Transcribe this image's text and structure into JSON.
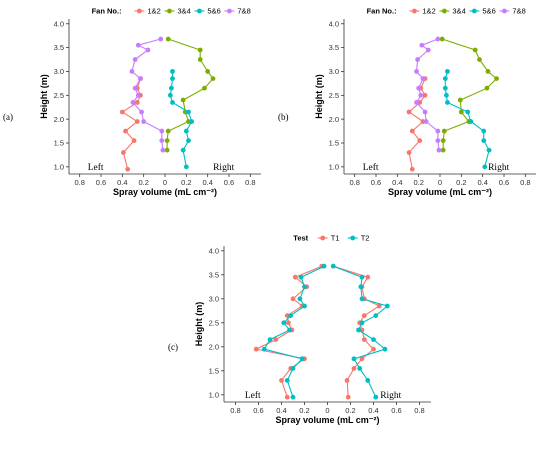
{
  "chart_data": [
    {
      "id": "a",
      "type": "line",
      "panel_tag": "(a)",
      "xlabel": "Spray volume (mL cm⁻²)",
      "ylabel": "Height (m)",
      "xlim": [
        -0.9,
        0.9
      ],
      "ylim": [
        0.85,
        4.1
      ],
      "x_ticks": [
        -0.8,
        -0.6,
        -0.4,
        -0.2,
        0,
        0.2,
        0.4,
        0.6,
        0.8
      ],
      "x_tick_labels": [
        "0.8",
        "0.6",
        "0.4",
        "0.2",
        "0",
        "0.2",
        "0.4",
        "0.6",
        "0.8"
      ],
      "y_ticks": [
        1.0,
        1.5,
        2.0,
        2.5,
        3.0,
        3.5,
        4.0
      ],
      "y_tick_labels": [
        "1.0",
        "1.5",
        "2.0",
        "2.5",
        "3.0",
        "3.5",
        "4.0"
      ],
      "legend_title": "Fan No.:",
      "legend_position": "top",
      "left_label": "Left",
      "right_label": "Right",
      "series": [
        {
          "name": "1&2",
          "color": "#F8766D",
          "x": [
            -0.35,
            -0.39,
            -0.29,
            -0.37,
            -0.26,
            -0.4,
            -0.26,
            -0.23,
            -0.26,
            -0.23
          ],
          "y": [
            0.95,
            1.3,
            1.55,
            1.75,
            1.95,
            2.15,
            2.35,
            2.5,
            2.65,
            2.85
          ]
        },
        {
          "name": "3&4",
          "color": "#7CAE00",
          "x": [
            0.02,
            0.02,
            0.03,
            0.22,
            0.19,
            0.17,
            0.37,
            0.45,
            0.4,
            0.33,
            0.33,
            0.03
          ],
          "y": [
            1.35,
            1.55,
            1.75,
            1.95,
            2.15,
            2.4,
            2.65,
            2.85,
            3.0,
            3.25,
            3.45,
            3.68
          ]
        },
        {
          "name": "5&6",
          "color": "#00BFC4",
          "x": [
            0.2,
            0.17,
            0.22,
            0.2,
            0.25,
            0.22,
            0.07,
            0.05,
            0.06,
            0.07,
            0.07
          ],
          "y": [
            1.0,
            1.35,
            1.55,
            1.75,
            1.95,
            2.15,
            2.35,
            2.5,
            2.65,
            2.85,
            3.0
          ]
        },
        {
          "name": "7&8",
          "color": "#C77CFF",
          "x": [
            -0.02,
            -0.03,
            -0.03,
            -0.2,
            -0.22,
            -0.3,
            -0.25,
            -0.28,
            -0.23,
            -0.31,
            -0.28,
            -0.16,
            -0.25,
            -0.04
          ],
          "y": [
            1.35,
            1.55,
            1.75,
            1.95,
            2.15,
            2.35,
            2.5,
            2.65,
            2.85,
            3.0,
            3.25,
            3.45,
            3.55,
            3.68
          ]
        }
      ]
    },
    {
      "id": "b",
      "type": "line",
      "panel_tag": "(b)",
      "xlabel": "Spray volume (mL cm⁻²)",
      "ylabel": "Height (m)",
      "xlim": [
        -0.9,
        0.9
      ],
      "ylim": [
        0.85,
        4.1
      ],
      "x_ticks": [
        -0.8,
        -0.6,
        -0.4,
        -0.2,
        0,
        0.2,
        0.4,
        0.6,
        0.8
      ],
      "x_tick_labels": [
        "0.8",
        "0.6",
        "0.4",
        "0.2",
        "0",
        "0.2",
        "0.4",
        "0.6",
        "0.8"
      ],
      "y_ticks": [
        1.0,
        1.5,
        2.0,
        2.5,
        3.0,
        3.5,
        4.0
      ],
      "y_tick_labels": [
        "1.0",
        "1.5",
        "2.0",
        "2.5",
        "3.0",
        "3.5",
        "4.0"
      ],
      "legend_title": "Fan No.:",
      "legend_position": "top",
      "left_label": "Left",
      "right_label": "Right",
      "series": [
        {
          "name": "1&2",
          "color": "#F8766D",
          "x": [
            -0.26,
            -0.29,
            -0.19,
            -0.26,
            -0.16,
            -0.29,
            -0.19,
            -0.14,
            -0.18,
            -0.14
          ],
          "y": [
            0.95,
            1.3,
            1.55,
            1.75,
            1.95,
            2.15,
            2.35,
            2.5,
            2.65,
            2.85
          ]
        },
        {
          "name": "3&4",
          "color": "#7CAE00",
          "x": [
            0.03,
            0.03,
            0.04,
            0.27,
            0.2,
            0.19,
            0.44,
            0.53,
            0.45,
            0.37,
            0.33,
            0.02
          ],
          "y": [
            1.35,
            1.55,
            1.75,
            1.95,
            2.15,
            2.4,
            2.65,
            2.85,
            3.0,
            3.25,
            3.45,
            3.68
          ]
        },
        {
          "name": "5&6",
          "color": "#00BFC4",
          "x": [
            0.42,
            0.46,
            0.41,
            0.41,
            0.29,
            0.26,
            0.07,
            0.06,
            0.05,
            0.05,
            0.07
          ],
          "y": [
            1.0,
            1.35,
            1.55,
            1.75,
            1.95,
            2.15,
            2.35,
            2.5,
            2.65,
            2.85,
            3.0
          ]
        },
        {
          "name": "7&8",
          "color": "#C77CFF",
          "x": [
            -0.01,
            -0.02,
            -0.02,
            -0.13,
            -0.14,
            -0.22,
            -0.18,
            -0.2,
            -0.16,
            -0.22,
            -0.21,
            -0.11,
            -0.17,
            -0.02
          ],
          "y": [
            1.35,
            1.55,
            1.75,
            1.95,
            2.15,
            2.35,
            2.5,
            2.65,
            2.85,
            3.0,
            3.25,
            3.45,
            3.55,
            3.68
          ]
        }
      ]
    },
    {
      "id": "c",
      "type": "line",
      "panel_tag": "(c)",
      "xlabel": "Spray volume (mL cm⁻²)",
      "ylabel": "Height (m)",
      "xlim": [
        -0.9,
        0.9
      ],
      "ylim": [
        0.85,
        4.1
      ],
      "x_ticks": [
        -0.8,
        -0.6,
        -0.4,
        -0.2,
        0,
        0.2,
        0.4,
        0.6,
        0.8
      ],
      "x_tick_labels": [
        "0.8",
        "0.6",
        "0.4",
        "0.2",
        "0",
        "0.2",
        "0.4",
        "0.6",
        "0.8"
      ],
      "y_ticks": [
        1.0,
        1.5,
        2.0,
        2.5,
        3.0,
        3.5,
        4.0
      ],
      "y_tick_labels": [
        "1.0",
        "1.5",
        "2.0",
        "2.5",
        "3.0",
        "3.5",
        "4.0"
      ],
      "legend_title": "Test",
      "legend_position": "top",
      "left_label": "Left",
      "right_label": "Right",
      "series": [
        {
          "name": "T1",
          "color": "#F8766D",
          "x": [
            -0.35,
            -0.4,
            -0.32,
            -0.2,
            -0.62,
            -0.45,
            -0.31,
            -0.34,
            -0.35,
            -0.22,
            -0.3,
            -0.18,
            -0.28,
            -0.05
          ],
          "y": [
            0.95,
            1.3,
            1.55,
            1.75,
            1.95,
            2.15,
            2.35,
            2.5,
            2.65,
            2.85,
            3.0,
            3.25,
            3.45,
            3.68
          ]
        },
        {
          "name": "T1",
          "color": "#F8766D",
          "x": [
            0.18,
            0.17,
            0.23,
            0.3,
            0.4,
            0.32,
            0.3,
            0.28,
            0.32,
            0.45,
            0.32,
            0.3,
            0.35,
            0.05
          ],
          "y": [
            0.95,
            1.3,
            1.55,
            1.75,
            1.95,
            2.15,
            2.35,
            2.5,
            2.65,
            2.85,
            3.0,
            3.25,
            3.45,
            3.68
          ]
        },
        {
          "name": "T2",
          "color": "#00BFC4",
          "x": [
            -0.3,
            -0.35,
            -0.3,
            -0.22,
            -0.55,
            -0.5,
            -0.33,
            -0.38,
            -0.32,
            -0.2,
            -0.24,
            -0.2,
            -0.23,
            -0.03
          ],
          "y": [
            0.95,
            1.3,
            1.55,
            1.75,
            1.95,
            2.15,
            2.35,
            2.5,
            2.65,
            2.85,
            3.0,
            3.25,
            3.45,
            3.68
          ]
        },
        {
          "name": "T2",
          "color": "#00BFC4",
          "x": [
            0.42,
            0.35,
            0.28,
            0.23,
            0.5,
            0.4,
            0.27,
            0.3,
            0.42,
            0.52,
            0.3,
            0.29,
            0.3,
            0.05
          ],
          "y": [
            0.95,
            1.3,
            1.55,
            1.75,
            1.95,
            2.15,
            2.35,
            2.5,
            2.65,
            2.85,
            3.0,
            3.25,
            3.45,
            3.68
          ]
        }
      ],
      "legend_entries": [
        {
          "name": "T1",
          "color": "#F8766D"
        },
        {
          "name": "T2",
          "color": "#00BFC4"
        }
      ]
    }
  ]
}
